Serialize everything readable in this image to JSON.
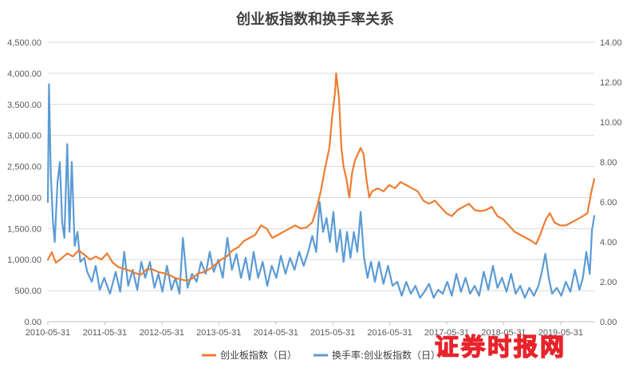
{
  "chart_data": {
    "type": "line",
    "title": "创业板指数和换手率关系",
    "x_tick_labels": [
      "2010-05-31",
      "2011-05-31",
      "2012-05-31",
      "2013-05-31",
      "2014-05-31",
      "2015-05-31",
      "2016-05-31",
      "2017-05-31",
      "2018-05-31",
      "2019-05-31"
    ],
    "y_left": {
      "ticks": [
        "0.00",
        "500.00",
        "1,000.00",
        "1,500.00",
        "2,000.00",
        "2,500.00",
        "3,000.00",
        "3,500.00",
        "4,000.00",
        "4,500.00"
      ],
      "range": [
        0,
        4500
      ]
    },
    "y_right": {
      "ticks": [
        "0.00",
        "2.00",
        "4.00",
        "6.00",
        "8.00",
        "10.00",
        "12.00",
        "14.00"
      ],
      "range": [
        0,
        14
      ]
    },
    "x_range": [
      2010.41,
      2020.0
    ],
    "grid": true,
    "legend_position": "bottom",
    "series": [
      {
        "name": "创业板指数（日）",
        "axis": "left",
        "color": "#ed7d31",
        "points": [
          [
            2010.41,
            1000
          ],
          [
            2010.48,
            1120
          ],
          [
            2010.55,
            950
          ],
          [
            2010.65,
            1020
          ],
          [
            2010.75,
            1100
          ],
          [
            2010.85,
            1050
          ],
          [
            2010.95,
            1150
          ],
          [
            2011.05,
            1080
          ],
          [
            2011.15,
            1000
          ],
          [
            2011.25,
            1050
          ],
          [
            2011.35,
            1000
          ],
          [
            2011.45,
            1100
          ],
          [
            2011.55,
            950
          ],
          [
            2011.65,
            880
          ],
          [
            2011.75,
            850
          ],
          [
            2011.85,
            820
          ],
          [
            2011.95,
            780
          ],
          [
            2012.05,
            760
          ],
          [
            2012.15,
            850
          ],
          [
            2012.25,
            840
          ],
          [
            2012.35,
            800
          ],
          [
            2012.45,
            780
          ],
          [
            2012.55,
            750
          ],
          [
            2012.65,
            700
          ],
          [
            2012.75,
            680
          ],
          [
            2012.85,
            660
          ],
          [
            2012.95,
            700
          ],
          [
            2013.05,
            780
          ],
          [
            2013.15,
            800
          ],
          [
            2013.25,
            850
          ],
          [
            2013.35,
            920
          ],
          [
            2013.45,
            1000
          ],
          [
            2013.55,
            1050
          ],
          [
            2013.65,
            1150
          ],
          [
            2013.75,
            1200
          ],
          [
            2013.85,
            1300
          ],
          [
            2013.95,
            1350
          ],
          [
            2014.05,
            1400
          ],
          [
            2014.15,
            1550
          ],
          [
            2014.25,
            1500
          ],
          [
            2014.35,
            1350
          ],
          [
            2014.45,
            1400
          ],
          [
            2014.55,
            1450
          ],
          [
            2014.65,
            1500
          ],
          [
            2014.75,
            1550
          ],
          [
            2014.85,
            1500
          ],
          [
            2014.95,
            1520
          ],
          [
            2015.05,
            1600
          ],
          [
            2015.12,
            1800
          ],
          [
            2015.2,
            2100
          ],
          [
            2015.28,
            2500
          ],
          [
            2015.35,
            2800
          ],
          [
            2015.4,
            3300
          ],
          [
            2015.45,
            3700
          ],
          [
            2015.47,
            4000
          ],
          [
            2015.52,
            3600
          ],
          [
            2015.56,
            2800
          ],
          [
            2015.6,
            2500
          ],
          [
            2015.65,
            2300
          ],
          [
            2015.7,
            2000
          ],
          [
            2015.75,
            2400
          ],
          [
            2015.8,
            2600
          ],
          [
            2015.85,
            2700
          ],
          [
            2015.9,
            2800
          ],
          [
            2015.95,
            2700
          ],
          [
            2016.0,
            2300
          ],
          [
            2016.05,
            2000
          ],
          [
            2016.1,
            2100
          ],
          [
            2016.2,
            2150
          ],
          [
            2016.3,
            2100
          ],
          [
            2016.4,
            2200
          ],
          [
            2016.5,
            2150
          ],
          [
            2016.6,
            2250
          ],
          [
            2016.7,
            2200
          ],
          [
            2016.8,
            2150
          ],
          [
            2016.9,
            2100
          ],
          [
            2017.0,
            1950
          ],
          [
            2017.1,
            1900
          ],
          [
            2017.2,
            1950
          ],
          [
            2017.3,
            1850
          ],
          [
            2017.4,
            1750
          ],
          [
            2017.5,
            1700
          ],
          [
            2017.6,
            1800
          ],
          [
            2017.7,
            1850
          ],
          [
            2017.8,
            1900
          ],
          [
            2017.9,
            1800
          ],
          [
            2018.0,
            1780
          ],
          [
            2018.1,
            1800
          ],
          [
            2018.2,
            1850
          ],
          [
            2018.3,
            1700
          ],
          [
            2018.4,
            1650
          ],
          [
            2018.5,
            1550
          ],
          [
            2018.6,
            1450
          ],
          [
            2018.7,
            1400
          ],
          [
            2018.8,
            1350
          ],
          [
            2018.9,
            1300
          ],
          [
            2018.98,
            1250
          ],
          [
            2019.05,
            1400
          ],
          [
            2019.15,
            1650
          ],
          [
            2019.22,
            1750
          ],
          [
            2019.3,
            1600
          ],
          [
            2019.4,
            1550
          ],
          [
            2019.5,
            1550
          ],
          [
            2019.6,
            1600
          ],
          [
            2019.7,
            1650
          ],
          [
            2019.8,
            1700
          ],
          [
            2019.88,
            1750
          ],
          [
            2019.95,
            2100
          ],
          [
            2020.0,
            2300
          ]
        ]
      },
      {
        "name": "换手率:创业板指数（日）",
        "axis": "right",
        "color": "#5b9bd5",
        "points": [
          [
            2010.41,
            6
          ],
          [
            2010.43,
            11.9
          ],
          [
            2010.46,
            7.5
          ],
          [
            2010.5,
            5
          ],
          [
            2010.53,
            4
          ],
          [
            2010.58,
            7
          ],
          [
            2010.62,
            8
          ],
          [
            2010.66,
            5
          ],
          [
            2010.7,
            4.2
          ],
          [
            2010.75,
            8.9
          ],
          [
            2010.79,
            4.5
          ],
          [
            2010.83,
            8
          ],
          [
            2010.88,
            3.8
          ],
          [
            2010.93,
            4.5
          ],
          [
            2010.98,
            3
          ],
          [
            2011.05,
            3.2
          ],
          [
            2011.1,
            2.5
          ],
          [
            2011.18,
            2
          ],
          [
            2011.25,
            2.8
          ],
          [
            2011.32,
            1.6
          ],
          [
            2011.4,
            2.2
          ],
          [
            2011.5,
            1.4
          ],
          [
            2011.6,
            2.5
          ],
          [
            2011.68,
            1.5
          ],
          [
            2011.75,
            3.5
          ],
          [
            2011.82,
            1.8
          ],
          [
            2011.9,
            2.6
          ],
          [
            2011.98,
            1.6
          ],
          [
            2012.05,
            3
          ],
          [
            2012.12,
            2.2
          ],
          [
            2012.2,
            3
          ],
          [
            2012.28,
            1.7
          ],
          [
            2012.35,
            2.4
          ],
          [
            2012.42,
            1.5
          ],
          [
            2012.5,
            2.8
          ],
          [
            2012.58,
            1.6
          ],
          [
            2012.65,
            2.2
          ],
          [
            2012.72,
            1.4
          ],
          [
            2012.78,
            4.2
          ],
          [
            2012.86,
            1.7
          ],
          [
            2012.94,
            2.4
          ],
          [
            2013.02,
            2
          ],
          [
            2013.1,
            3
          ],
          [
            2013.18,
            2.4
          ],
          [
            2013.25,
            3.5
          ],
          [
            2013.32,
            2.5
          ],
          [
            2013.4,
            3.1
          ],
          [
            2013.48,
            2.2
          ],
          [
            2013.56,
            4.2
          ],
          [
            2013.64,
            2.6
          ],
          [
            2013.72,
            3.4
          ],
          [
            2013.8,
            2.2
          ],
          [
            2013.88,
            3.2
          ],
          [
            2013.95,
            2.1
          ],
          [
            2014.02,
            3.5
          ],
          [
            2014.1,
            2.2
          ],
          [
            2014.18,
            3
          ],
          [
            2014.26,
            1.8
          ],
          [
            2014.34,
            2.8
          ],
          [
            2014.42,
            2.2
          ],
          [
            2014.5,
            3.3
          ],
          [
            2014.58,
            2.4
          ],
          [
            2014.66,
            3.2
          ],
          [
            2014.74,
            2.6
          ],
          [
            2014.82,
            3.5
          ],
          [
            2014.9,
            2.8
          ],
          [
            2014.98,
            3.5
          ],
          [
            2015.05,
            4.3
          ],
          [
            2015.12,
            3.5
          ],
          [
            2015.18,
            6
          ],
          [
            2015.24,
            4.5
          ],
          [
            2015.3,
            5.2
          ],
          [
            2015.36,
            4
          ],
          [
            2015.42,
            5.5
          ],
          [
            2015.48,
            3.5
          ],
          [
            2015.54,
            4.6
          ],
          [
            2015.6,
            3
          ],
          [
            2015.66,
            4.5
          ],
          [
            2015.72,
            3.2
          ],
          [
            2015.78,
            4.5
          ],
          [
            2015.84,
            3.5
          ],
          [
            2015.9,
            5.5
          ],
          [
            2015.96,
            3.2
          ],
          [
            2016.02,
            2.2
          ],
          [
            2016.08,
            3
          ],
          [
            2016.15,
            2
          ],
          [
            2016.22,
            3
          ],
          [
            2016.3,
            1.9
          ],
          [
            2016.38,
            2.8
          ],
          [
            2016.46,
            1.8
          ],
          [
            2016.54,
            2
          ],
          [
            2016.62,
            1.3
          ],
          [
            2016.7,
            2
          ],
          [
            2016.78,
            1.4
          ],
          [
            2016.86,
            1.8
          ],
          [
            2016.94,
            1.2
          ],
          [
            2017.02,
            1.5
          ],
          [
            2017.1,
            1.9
          ],
          [
            2017.18,
            1.2
          ],
          [
            2017.26,
            1.6
          ],
          [
            2017.34,
            1.4
          ],
          [
            2017.42,
            2
          ],
          [
            2017.5,
            1.3
          ],
          [
            2017.58,
            2.4
          ],
          [
            2017.66,
            1.5
          ],
          [
            2017.74,
            2.2
          ],
          [
            2017.82,
            1.4
          ],
          [
            2017.9,
            1.8
          ],
          [
            2017.98,
            1.3
          ],
          [
            2018.06,
            2.5
          ],
          [
            2018.14,
            1.6
          ],
          [
            2018.22,
            2.8
          ],
          [
            2018.3,
            1.7
          ],
          [
            2018.38,
            2.2
          ],
          [
            2018.46,
            1.5
          ],
          [
            2018.54,
            2.4
          ],
          [
            2018.62,
            1.4
          ],
          [
            2018.7,
            1.8
          ],
          [
            2018.78,
            1.2
          ],
          [
            2018.86,
            1.7
          ],
          [
            2018.94,
            1.3
          ],
          [
            2019.02,
            1.8
          ],
          [
            2019.08,
            2.5
          ],
          [
            2019.14,
            3.4
          ],
          [
            2019.2,
            2.2
          ],
          [
            2019.26,
            1.4
          ],
          [
            2019.34,
            1.7
          ],
          [
            2019.42,
            1.3
          ],
          [
            2019.5,
            2
          ],
          [
            2019.58,
            1.5
          ],
          [
            2019.66,
            2.6
          ],
          [
            2019.74,
            1.6
          ],
          [
            2019.8,
            2.2
          ],
          [
            2019.86,
            3.5
          ],
          [
            2019.92,
            2.4
          ],
          [
            2019.96,
            4.6
          ],
          [
            2020.0,
            5.3
          ]
        ]
      }
    ]
  },
  "watermark": "证券时报网"
}
